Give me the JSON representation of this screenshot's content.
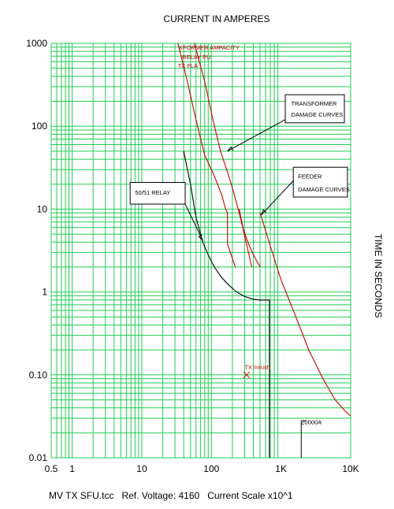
{
  "chart_data": {
    "type": "line",
    "title": "CURRENT IN AMPERES",
    "ylabel": "TIME IN SECONDS",
    "x_scale": "log",
    "y_scale": "log",
    "xlim": [
      0.5,
      10000
    ],
    "ylim": [
      0.01,
      1000
    ],
    "x_ticks": [
      {
        "v": 0.5,
        "label": "0.5"
      },
      {
        "v": 1,
        "label": "1"
      },
      {
        "v": 10,
        "label": "10"
      },
      {
        "v": 100,
        "label": "100"
      },
      {
        "v": 1000,
        "label": "1K"
      },
      {
        "v": 10000,
        "label": "10K"
      }
    ],
    "y_ticks": [
      {
        "v": 1000,
        "label": "1000"
      },
      {
        "v": 100,
        "label": "100"
      },
      {
        "v": 10,
        "label": "10"
      },
      {
        "v": 1,
        "label": "1"
      },
      {
        "v": 0.1,
        "label": "0.10"
      },
      {
        "v": 0.01,
        "label": "0.01"
      }
    ],
    "grid": true,
    "colors": {
      "grid": "#22cc55",
      "relay": "#000000",
      "damage": "#cc0000"
    },
    "series": [
      {
        "key": "relay",
        "color": "#000000",
        "x": [
          40,
          50,
          60,
          75,
          90,
          110,
          140,
          180,
          230,
          300,
          400,
          500,
          600,
          680,
          680
        ],
        "y": [
          50,
          20,
          8,
          4,
          2.8,
          2.0,
          1.5,
          1.2,
          1.0,
          0.88,
          0.82,
          0.8,
          0.8,
          0.8,
          0.01
        ]
      },
      {
        "key": "transformer-damage-1",
        "color": "#cc0000",
        "x": [
          33,
          45,
          60,
          80,
          110,
          140,
          160,
          170,
          170,
          220
        ],
        "y": [
          1000,
          350,
          120,
          45,
          25,
          15,
          10,
          9,
          3.8,
          2.0
        ]
      },
      {
        "key": "transformer-damage-2",
        "color": "#cc0000",
        "x": [
          57,
          80,
          105,
          135,
          170,
          200,
          260,
          340,
          380
        ],
        "y": [
          1000,
          350,
          120,
          50,
          28,
          18,
          8,
          3,
          2.0
        ]
      },
      {
        "key": "feeder-damage",
        "color": "#cc0000",
        "x": [
          500,
          700,
          1000,
          1500,
          2500,
          4000,
          6000,
          8000,
          10000
        ],
        "y": [
          9,
          3.6,
          1.4,
          0.6,
          0.2,
          0.09,
          0.05,
          0.038,
          0.032
        ]
      },
      {
        "key": "transformer-damage-3",
        "color": "#cc0000",
        "x": [
          250,
          290,
          350,
          420,
          500
        ],
        "y": [
          10,
          5.5,
          3.6,
          2.6,
          2.0
        ]
      }
    ],
    "annotations": [
      {
        "text": "TRANSFORMER",
        "x": 1400,
        "y": 190
      },
      {
        "text": "DAMAGE CURVES",
        "x": 1400,
        "y": 140
      },
      {
        "text": "FEEDER",
        "x": 1750,
        "y": 25
      },
      {
        "text": "DAMAGE CURVES",
        "x": 1750,
        "y": 17.5
      },
      {
        "text": "50/51 RELAY",
        "x": 8,
        "y": 16
      },
      {
        "text": "20000A",
        "x": 1950,
        "y": 0.027
      }
    ],
    "red_labels": [
      {
        "text": "XFORMER AMPACITY",
        "x": 34,
        "y": 900
      },
      {
        "text": "RELAY PU",
        "x": 38,
        "y": 690
      },
      {
        "text": "TX FLA",
        "x": 33,
        "y": 540
      },
      {
        "text": "TX Inrush",
        "x": 300,
        "y": 0.125
      }
    ],
    "marks": [
      {
        "type": "x",
        "x": 320,
        "y": 0.1
      },
      {
        "type": "tick",
        "x": 1950,
        "y": 0.028
      }
    ]
  },
  "footer": "MV TX SFU.tcc   Ref. Voltage: 4160   Current Scale x10^1"
}
